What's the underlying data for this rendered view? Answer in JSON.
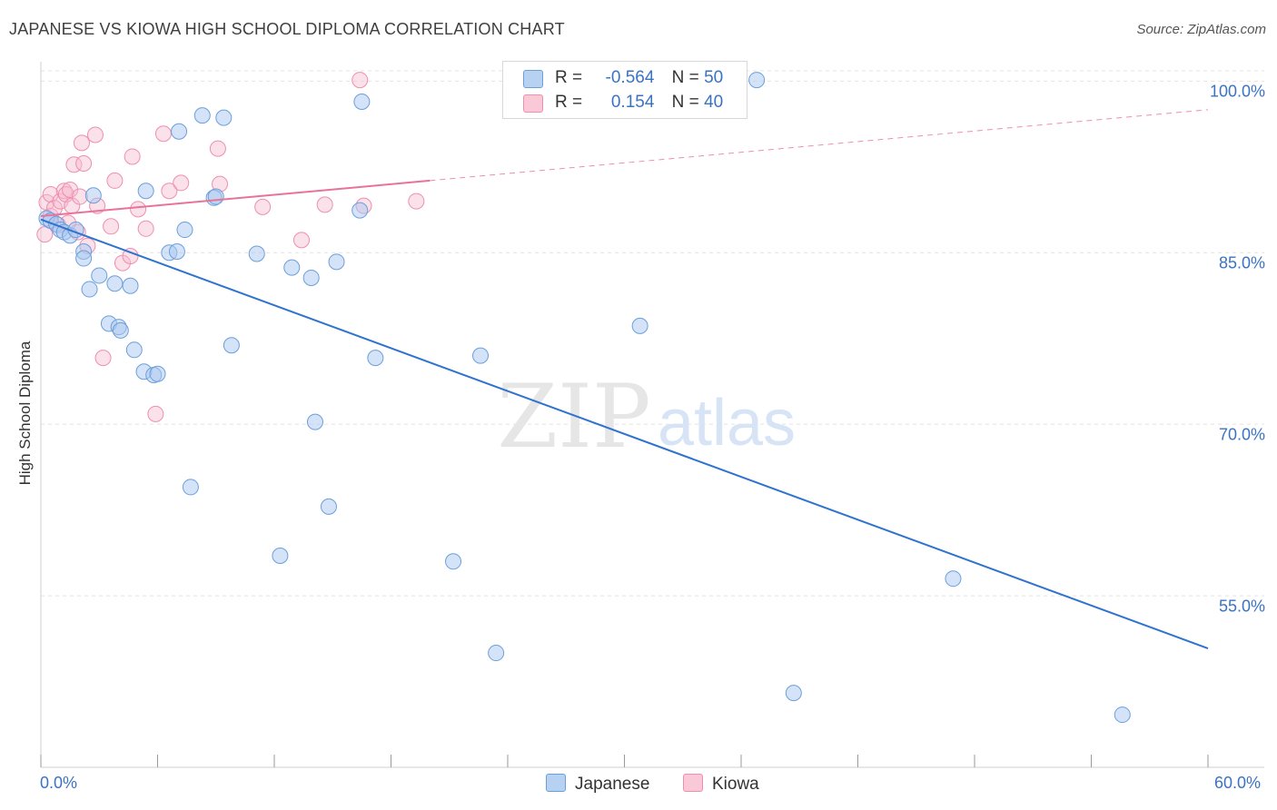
{
  "title": "JAPANESE VS KIOWA HIGH SCHOOL DIPLOMA CORRELATION CHART",
  "source": "Source: ZipAtlas.com",
  "watermark": {
    "zip": "ZIP",
    "atlas": "atlas"
  },
  "colors": {
    "japanese_fill": "#a9c8ef",
    "japanese_stroke": "#6b9fdb",
    "japanese_line": "#2f72cf",
    "kiowa_fill": "#f7bcd0",
    "kiowa_stroke": "#ee8fae",
    "kiowa_line": "#e8739a",
    "tick_label": "#3a73c4",
    "grid": "#e3e3e3"
  },
  "legend": {
    "rows": [
      {
        "r_label": "R =",
        "r_value": "-0.564",
        "n_label": "N =",
        "n_value": "50"
      },
      {
        "r_label": "R =",
        "r_value": "0.154",
        "n_label": "N =",
        "n_value": "40"
      }
    ]
  },
  "bottom_legend": {
    "japanese": "Japanese",
    "kiowa": "Kiowa"
  },
  "chart_data": {
    "type": "scatter",
    "title": "JAPANESE VS KIOWA HIGH SCHOOL DIPLOMA CORRELATION CHART",
    "xlabel": "",
    "ylabel": "High School Diploma",
    "xlim": [
      0,
      60
    ],
    "ylim": [
      40,
      103
    ],
    "x_tick_labels": [
      "0.0%",
      "60.0%"
    ],
    "y_ticks": [
      55,
      70,
      85,
      100
    ],
    "y_tick_labels": [
      "55.0%",
      "70.0%",
      "85.0%",
      "100.0%"
    ],
    "grid": true,
    "legend_position": "top-center",
    "series": [
      {
        "name": "Japanese",
        "r": -0.564,
        "n": 50,
        "trend": {
          "x": [
            0,
            60
          ],
          "y": [
            87.9,
            50.4
          ],
          "dashed_from": null
        },
        "points": [
          [
            0.3,
            88.0
          ],
          [
            0.5,
            87.8
          ],
          [
            0.8,
            87.5
          ],
          [
            1.0,
            87.0
          ],
          [
            1.2,
            86.8
          ],
          [
            1.5,
            86.5
          ],
          [
            1.8,
            87.0
          ],
          [
            2.2,
            85.1
          ],
          [
            2.2,
            84.5
          ],
          [
            2.5,
            81.8
          ],
          [
            2.7,
            90.0
          ],
          [
            3.0,
            83.0
          ],
          [
            3.5,
            78.8
          ],
          [
            3.8,
            82.3
          ],
          [
            4.0,
            78.5
          ],
          [
            4.1,
            78.2
          ],
          [
            4.6,
            82.1
          ],
          [
            4.8,
            76.5
          ],
          [
            5.3,
            74.6
          ],
          [
            5.4,
            90.4
          ],
          [
            5.8,
            74.3
          ],
          [
            6.0,
            74.4
          ],
          [
            6.6,
            85.0
          ],
          [
            7.0,
            85.1
          ],
          [
            7.1,
            95.6
          ],
          [
            7.4,
            87.0
          ],
          [
            7.7,
            64.5
          ],
          [
            8.3,
            97.0
          ],
          [
            8.9,
            89.8
          ],
          [
            9.0,
            89.9
          ],
          [
            9.4,
            96.8
          ],
          [
            9.8,
            76.9
          ],
          [
            11.1,
            84.9
          ],
          [
            12.3,
            58.5
          ],
          [
            12.9,
            83.7
          ],
          [
            13.9,
            82.8
          ],
          [
            14.1,
            70.2
          ],
          [
            14.8,
            62.8
          ],
          [
            15.2,
            84.2
          ],
          [
            16.4,
            88.7
          ],
          [
            16.5,
            98.2
          ],
          [
            17.2,
            75.8
          ],
          [
            21.2,
            58.0
          ],
          [
            22.6,
            76.0
          ],
          [
            23.4,
            50.0
          ],
          [
            30.8,
            78.6
          ],
          [
            36.8,
            100.1
          ],
          [
            38.7,
            46.5
          ],
          [
            46.9,
            56.5
          ],
          [
            55.6,
            44.6
          ]
        ]
      },
      {
        "name": "Kiowa",
        "r": 0.154,
        "n": 40,
        "trend": {
          "x": [
            0,
            60
          ],
          "y": [
            88.2,
            97.5
          ],
          "dashed_from": 20
        },
        "points": [
          [
            0.2,
            86.6
          ],
          [
            0.3,
            89.4
          ],
          [
            0.5,
            88.2
          ],
          [
            0.5,
            90.1
          ],
          [
            0.7,
            88.9
          ],
          [
            0.9,
            87.4
          ],
          [
            1.0,
            89.5
          ],
          [
            1.2,
            90.4
          ],
          [
            1.3,
            90.1
          ],
          [
            1.4,
            87.6
          ],
          [
            1.5,
            90.5
          ],
          [
            1.6,
            89.1
          ],
          [
            1.7,
            92.7
          ],
          [
            1.9,
            86.8
          ],
          [
            2.1,
            94.6
          ],
          [
            2.2,
            92.8
          ],
          [
            2.4,
            85.6
          ],
          [
            2.8,
            95.3
          ],
          [
            2.9,
            89.1
          ],
          [
            3.2,
            75.8
          ],
          [
            3.6,
            87.3
          ],
          [
            3.8,
            91.3
          ],
          [
            4.2,
            84.1
          ],
          [
            4.6,
            84.7
          ],
          [
            4.7,
            93.4
          ],
          [
            5.0,
            88.8
          ],
          [
            5.4,
            87.1
          ],
          [
            5.9,
            70.9
          ],
          [
            6.3,
            95.4
          ],
          [
            6.6,
            90.4
          ],
          [
            7.2,
            91.1
          ],
          [
            9.1,
            94.1
          ],
          [
            9.2,
            91.0
          ],
          [
            11.4,
            89.0
          ],
          [
            13.4,
            86.1
          ],
          [
            14.6,
            89.2
          ],
          [
            16.4,
            100.1
          ],
          [
            16.6,
            89.1
          ],
          [
            19.3,
            89.5
          ],
          [
            2.0,
            89.9
          ]
        ]
      }
    ]
  }
}
